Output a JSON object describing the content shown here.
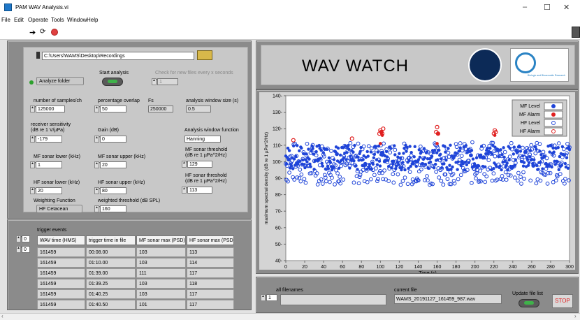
{
  "window": {
    "title": "PAM WAV Analysis.vi",
    "minimize": "–",
    "maximize": "☐",
    "close": "✕"
  },
  "menu": [
    "File",
    "Edit",
    "Operate",
    "Tools",
    "Window",
    "Help"
  ],
  "controls": {
    "path": "C:\\Users\\WAMS\\Desktop\\Recordings",
    "analyze_mode": "Analyze folder",
    "start_label": "Start analysis",
    "check_label": "Check for new files every x seconds",
    "check_value": "1",
    "samples_label": "number of samples/ch",
    "samples_value": "125000",
    "overlap_label": "percentage overlap",
    "overlap_value": "50",
    "fs_label": "Fs",
    "fs_value": "250000",
    "window_size_label": "analysis window size (s)",
    "window_size_value": "0.5",
    "sensitivity_label_1": "receiver sensitivity",
    "sensitivity_label_2": "(dB re 1 V/µPa)",
    "sensitivity_value": "-179",
    "gain_label": "Gain (dB)",
    "gain_value": "0",
    "window_fn_label": "Analysis window function",
    "window_fn_value": "Hanning",
    "mf_lower_label": "MF sonar lower (kHz)",
    "mf_lower_value": "1",
    "mf_upper_label": "MF sonar upper (kHz)",
    "mf_upper_value": "20",
    "mf_thresh_label_1": "MF sonar threshold",
    "mf_thresh_label_2": "(dB re 1 µPa^2/Hz)",
    "mf_thresh_value": "129",
    "hf_lower_label": "HF sonar lower (kHz)",
    "hf_lower_value": "20",
    "hf_upper_label": "HF sonar upper (kHz)",
    "hf_upper_value": "80",
    "hf_thresh_label_1": "HF sonar threshold",
    "hf_thresh_label_2": "(dB re 1 µPa^2/Hz)",
    "hf_thresh_value": "113",
    "weighting_label": "Weighting Function",
    "weighting_value": "HF Cetacean",
    "weighted_label": "weighted threshold (dB SPL)",
    "weighted_value": "160"
  },
  "events": {
    "label": "trigger events",
    "index_row": "0",
    "index_col": "0",
    "headers": [
      "WAV time (HMS)",
      "trigger time in file",
      "MF sonar max (PSD)",
      "HF sonar max (PSD)"
    ],
    "rows": [
      [
        "161459",
        "00:08.00",
        "103",
        "113"
      ],
      [
        "161459",
        "01:10.00",
        "103",
        "114"
      ],
      [
        "161459",
        "01:39.00",
        "111",
        "117"
      ],
      [
        "161459",
        "01:39.25",
        "103",
        "118"
      ],
      [
        "161459",
        "01:40.25",
        "103",
        "117"
      ],
      [
        "161459",
        "01:40.50",
        "101",
        "117"
      ]
    ]
  },
  "banner": {
    "title": "WAV WATCH",
    "logo2_caption": "Biologic and Bioacoustic Research"
  },
  "files": {
    "all_label": "all filenames",
    "index": "1",
    "current_label": "current file",
    "current_value": "WAMS_20191127_161459_987.wav",
    "update_label": "Update file list",
    "stop_label": "STOP"
  },
  "chart_data": {
    "type": "scatter",
    "xlabel": "Time (s)",
    "ylabel": "maximum spectral density (dB re 1 µPa^2/Hz)",
    "xlim": [
      0,
      300
    ],
    "ylim": [
      40,
      140
    ],
    "xticks": [
      0,
      20,
      40,
      60,
      80,
      100,
      120,
      140,
      160,
      180,
      200,
      220,
      240,
      260,
      280,
      300
    ],
    "yticks": [
      40,
      50,
      60,
      70,
      80,
      90,
      100,
      110,
      120,
      130,
      140
    ],
    "grid": false,
    "legend_position": "top-right",
    "series": [
      {
        "name": "MF Level",
        "color": "#1f44d8",
        "marker": "filled",
        "band": [
          95,
          110
        ]
      },
      {
        "name": "MF Alarm",
        "color": "#e02020",
        "marker": "filled",
        "points": [
          [
            100,
            111
          ],
          [
            101,
            118
          ],
          [
            102,
            116
          ],
          [
            160,
            111
          ],
          [
            161,
            117
          ],
          [
            221,
            116
          ]
        ]
      },
      {
        "name": "HF Level",
        "color": "#1f44d8",
        "marker": "open",
        "band": [
          86,
          112
        ]
      },
      {
        "name": "HF Alarm",
        "color": "#e02020",
        "marker": "open",
        "points": [
          [
            8,
            113
          ],
          [
            70,
            114
          ],
          [
            99,
            117
          ],
          [
            100,
            119
          ],
          [
            101,
            118
          ],
          [
            102,
            117
          ],
          [
            103,
            120
          ],
          [
            159,
            118
          ],
          [
            160,
            121
          ],
          [
            161,
            117
          ],
          [
            220,
            117
          ],
          [
            221,
            119
          ],
          [
            222,
            118
          ]
        ]
      }
    ]
  }
}
